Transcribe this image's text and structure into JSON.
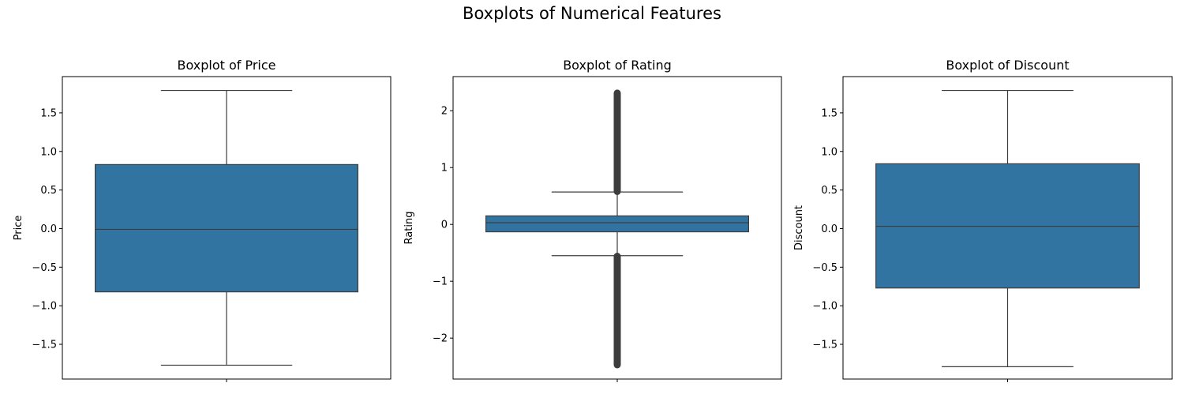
{
  "figure": {
    "suptitle": "Boxplots of Numerical Features"
  },
  "colors": {
    "box_fill": "#3274a1",
    "line": "#3d3d3d",
    "axes": "#000000"
  },
  "chart_data": [
    {
      "type": "box",
      "title": "Boxplot of Price",
      "xlabel": "",
      "ylabel": "Price",
      "ylim": [
        -1.95,
        1.97
      ],
      "yticks": [
        -1.5,
        -1.0,
        -0.5,
        0.0,
        0.5,
        1.0,
        1.5
      ],
      "ytick_labels": [
        "−1.5",
        "−1.0",
        "−0.5",
        "0.0",
        "0.5",
        "1.0",
        "1.5"
      ],
      "stats": {
        "whislo": -1.77,
        "q1": -0.82,
        "med": -0.01,
        "q3": 0.83,
        "whishi": 1.79
      },
      "outliers": []
    },
    {
      "type": "box",
      "title": "Boxplot of Rating",
      "xlabel": "",
      "ylabel": "Rating",
      "ylim": [
        -2.72,
        2.6
      ],
      "yticks": [
        -2,
        -1,
        0,
        1,
        2
      ],
      "ytick_labels": [
        "−2",
        "−1",
        "0",
        "1",
        "2"
      ],
      "stats": {
        "whislo": -0.55,
        "q1": -0.13,
        "med": 0.03,
        "q3": 0.15,
        "whishi": 0.57
      },
      "outliers": {
        "low_range": [
          -2.47,
          -0.56
        ],
        "high_range": [
          0.58,
          2.31
        ]
      }
    },
    {
      "type": "box",
      "title": "Boxplot of Discount",
      "xlabel": "",
      "ylabel": "Discount",
      "ylim": [
        -1.95,
        1.97
      ],
      "yticks": [
        -1.5,
        -1.0,
        -0.5,
        0.0,
        0.5,
        1.0,
        1.5
      ],
      "ytick_labels": [
        "−1.5",
        "−1.0",
        "−0.5",
        "0.0",
        "0.5",
        "1.0",
        "1.5"
      ],
      "stats": {
        "whislo": -1.79,
        "q1": -0.77,
        "med": 0.03,
        "q3": 0.84,
        "whishi": 1.79
      },
      "outliers": []
    }
  ]
}
